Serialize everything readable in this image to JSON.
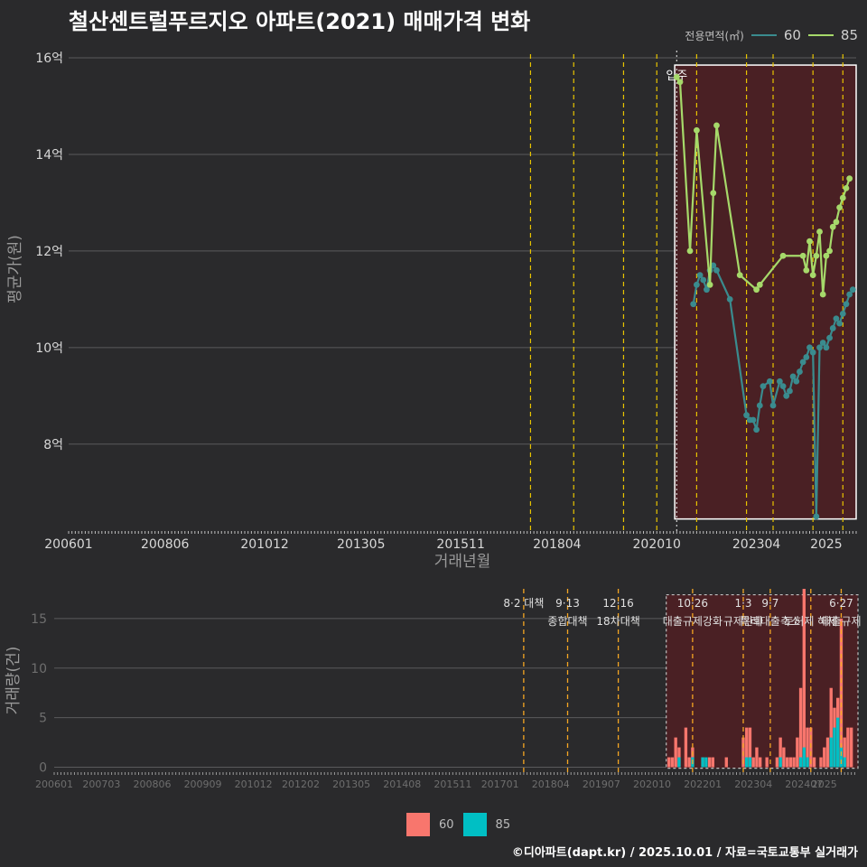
{
  "title": "철산센트럴푸르지오 아파트(2021) 매매가격 변화",
  "source": "©디아파트(dapt.kr) / 2025.10.01 / 자료=국토교통부 실거래가",
  "legend": {
    "title": "전용면적(㎡)",
    "items": [
      "60",
      "85"
    ]
  },
  "colors": {
    "s60_line": "#3a8b8e",
    "s85_line": "#a6d96a",
    "bar60": "#f8766d",
    "bar85": "#00bfc4",
    "policy_line": "#e8c400",
    "policy_line_bottom": "#f5a623",
    "shade": "#4a2024"
  },
  "chart_data": [
    {
      "type": "line",
      "xlabel": "거래년월",
      "ylabel": "평균가(원)",
      "x_ticks": [
        "200601",
        "200806",
        "201012",
        "201305",
        "201511",
        "201804",
        "202010",
        "202304",
        "2025"
      ],
      "y_ticks": [
        "8억",
        "10억",
        "12억",
        "14억",
        "16억"
      ],
      "y_tick_values": [
        8,
        10,
        12,
        14,
        16
      ],
      "ylim": [
        6.2,
        16.3
      ],
      "xlim": [
        "2006-01",
        "2025-10"
      ],
      "annotation": "입주",
      "policy_dates": [
        "2017-08",
        "2018-09",
        "2019-12",
        "2020-10",
        "2021-10",
        "2023-01",
        "2023-09",
        "2024-09",
        "2025-06"
      ],
      "series": [
        {
          "name": "60",
          "points": [
            [
              "2021-09",
              10.9
            ],
            [
              "2021-10",
              11.3
            ],
            [
              "2021-11",
              11.5
            ],
            [
              "2021-12",
              11.4
            ],
            [
              "2022-01",
              11.2
            ],
            [
              "2022-02",
              11.6
            ],
            [
              "2022-03",
              11.7
            ],
            [
              "2022-04",
              11.6
            ],
            [
              "2022-08",
              11.0
            ],
            [
              "2023-01",
              8.6
            ],
            [
              "2023-02",
              8.5
            ],
            [
              "2023-03",
              8.5
            ],
            [
              "2023-04",
              8.3
            ],
            [
              "2023-05",
              8.8
            ],
            [
              "2023-06",
              9.2
            ],
            [
              "2023-08",
              9.3
            ],
            [
              "2023-09",
              8.8
            ],
            [
              "2023-11",
              9.3
            ],
            [
              "2023-12",
              9.2
            ],
            [
              "2024-01",
              9.0
            ],
            [
              "2024-02",
              9.1
            ],
            [
              "2024-03",
              9.4
            ],
            [
              "2024-04",
              9.3
            ],
            [
              "2024-05",
              9.5
            ],
            [
              "2024-06",
              9.7
            ],
            [
              "2024-07",
              9.8
            ],
            [
              "2024-08",
              10.0
            ],
            [
              "2024-09",
              9.9
            ],
            [
              "2024-10",
              6.5
            ],
            [
              "2024-11",
              10.0
            ],
            [
              "2024-12",
              10.1
            ],
            [
              "2025-01",
              10.0
            ],
            [
              "2025-02",
              10.2
            ],
            [
              "2025-03",
              10.4
            ],
            [
              "2025-04",
              10.6
            ],
            [
              "2025-05",
              10.5
            ],
            [
              "2025-06",
              10.7
            ],
            [
              "2025-07",
              10.9
            ],
            [
              "2025-08",
              11.1
            ],
            [
              "2025-09",
              11.2
            ]
          ]
        },
        {
          "name": "85",
          "points": [
            [
              "2021-04",
              15.6
            ],
            [
              "2021-05",
              15.5
            ],
            [
              "2021-08",
              12.0
            ],
            [
              "2021-10",
              14.5
            ],
            [
              "2022-02",
              11.3
            ],
            [
              "2022-03",
              13.2
            ],
            [
              "2022-04",
              14.6
            ],
            [
              "2022-11",
              11.5
            ],
            [
              "2023-04",
              11.2
            ],
            [
              "2023-05",
              11.3
            ],
            [
              "2023-12",
              11.9
            ],
            [
              "2024-06",
              11.9
            ],
            [
              "2024-07",
              11.6
            ],
            [
              "2024-08",
              12.2
            ],
            [
              "2024-09",
              11.5
            ],
            [
              "2024-10",
              11.9
            ],
            [
              "2024-11",
              12.4
            ],
            [
              "2024-12",
              11.1
            ],
            [
              "2025-01",
              11.9
            ],
            [
              "2025-02",
              12.0
            ],
            [
              "2025-03",
              12.5
            ],
            [
              "2025-04",
              12.6
            ],
            [
              "2025-05",
              12.9
            ],
            [
              "2025-06",
              13.1
            ],
            [
              "2025-07",
              13.3
            ],
            [
              "2025-08",
              13.5
            ]
          ]
        }
      ]
    },
    {
      "type": "bar",
      "ylabel": "거래량(건)",
      "x_ticks": [
        "200601",
        "200703",
        "200806",
        "200909",
        "201012",
        "201202",
        "201305",
        "201408",
        "201511",
        "201701",
        "201804",
        "201907",
        "202010",
        "202201",
        "202304",
        "202407",
        "2025"
      ],
      "y_ticks": [
        "0",
        "5",
        "10",
        "15"
      ],
      "y_tick_values": [
        0,
        5,
        10,
        15
      ],
      "ylim": [
        -0.5,
        18
      ],
      "policies": [
        {
          "date": "2017-08",
          "top": "8·2 대책",
          "bottom": ""
        },
        {
          "date": "2018-09",
          "top": "9·13",
          "bottom": "종합대책"
        },
        {
          "date": "2019-12",
          "top": "12·16",
          "bottom": "18차대책"
        },
        {
          "date": "2021-10",
          "top": "10·26",
          "bottom": "대출규제강화"
        },
        {
          "date": "2023-01",
          "top": "1·3",
          "bottom": "규제완화"
        },
        {
          "date": "2023-09",
          "top": "9·7",
          "bottom": "특례대출축소"
        },
        {
          "date": "2024-09",
          "top": "",
          "bottom": "토허제 해제"
        },
        {
          "date": "2025-06",
          "top": "6·27",
          "bottom": "대출규제"
        }
      ],
      "series": [
        {
          "name": "60",
          "points": [
            [
              "2021-03",
              1
            ],
            [
              "2021-04",
              1
            ],
            [
              "2021-05",
              3
            ],
            [
              "2021-06",
              2
            ],
            [
              "2021-08",
              4
            ],
            [
              "2021-09",
              1
            ],
            [
              "2021-10",
              2
            ],
            [
              "2022-01",
              1
            ],
            [
              "2022-03",
              1
            ],
            [
              "2022-04",
              1
            ],
            [
              "2022-08",
              1
            ],
            [
              "2023-01",
              3
            ],
            [
              "2023-02",
              4
            ],
            [
              "2023-03",
              4
            ],
            [
              "2023-04",
              1
            ],
            [
              "2023-05",
              2
            ],
            [
              "2023-06",
              1
            ],
            [
              "2023-08",
              1
            ],
            [
              "2023-11",
              1
            ],
            [
              "2023-12",
              3
            ],
            [
              "2024-01",
              2
            ],
            [
              "2024-02",
              1
            ],
            [
              "2024-03",
              1
            ],
            [
              "2024-04",
              1
            ],
            [
              "2024-05",
              3
            ],
            [
              "2024-06",
              8
            ],
            [
              "2024-07",
              18
            ],
            [
              "2024-08",
              4
            ],
            [
              "2024-09",
              4
            ],
            [
              "2024-10",
              1
            ],
            [
              "2024-12",
              1
            ],
            [
              "2025-01",
              2
            ],
            [
              "2025-02",
              3
            ],
            [
              "2025-03",
              8
            ],
            [
              "2025-04",
              6
            ],
            [
              "2025-05",
              7
            ],
            [
              "2025-06",
              15
            ],
            [
              "2025-07",
              3
            ],
            [
              "2025-08",
              4
            ],
            [
              "2025-09",
              4
            ]
          ]
        },
        {
          "name": "85",
          "points": [
            [
              "2021-06",
              1
            ],
            [
              "2021-10",
              1
            ],
            [
              "2022-01",
              1
            ],
            [
              "2022-02",
              1
            ],
            [
              "2023-02",
              1
            ],
            [
              "2023-03",
              1
            ],
            [
              "2023-12",
              1
            ],
            [
              "2024-06",
              1
            ],
            [
              "2024-07",
              2
            ],
            [
              "2024-08",
              1
            ],
            [
              "2025-03",
              3
            ],
            [
              "2025-04",
              4
            ],
            [
              "2025-05",
              5
            ],
            [
              "2025-06",
              2
            ],
            [
              "2025-07",
              1
            ]
          ]
        }
      ]
    }
  ]
}
